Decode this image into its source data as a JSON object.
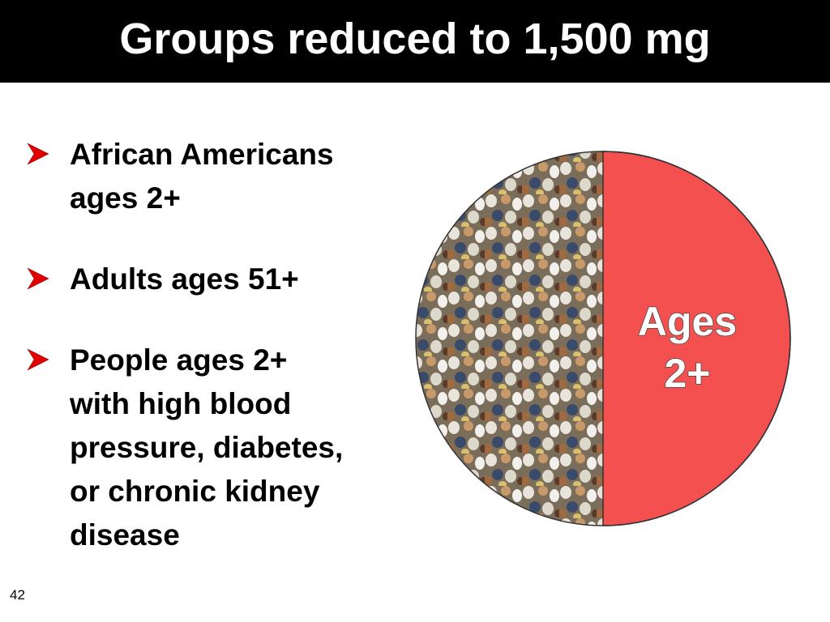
{
  "header": {
    "title": "Groups reduced to 1,500 mg"
  },
  "bullets": [
    [
      "African Americans",
      "ages 2+"
    ],
    [
      "Adults ages 51+"
    ],
    [
      "People ages 2+",
      "with high blood",
      "pressure, diabetes,",
      "or chronic kidney",
      "disease"
    ]
  ],
  "circle_label": [
    "Ages",
    "2+"
  ],
  "page_number": "42"
}
